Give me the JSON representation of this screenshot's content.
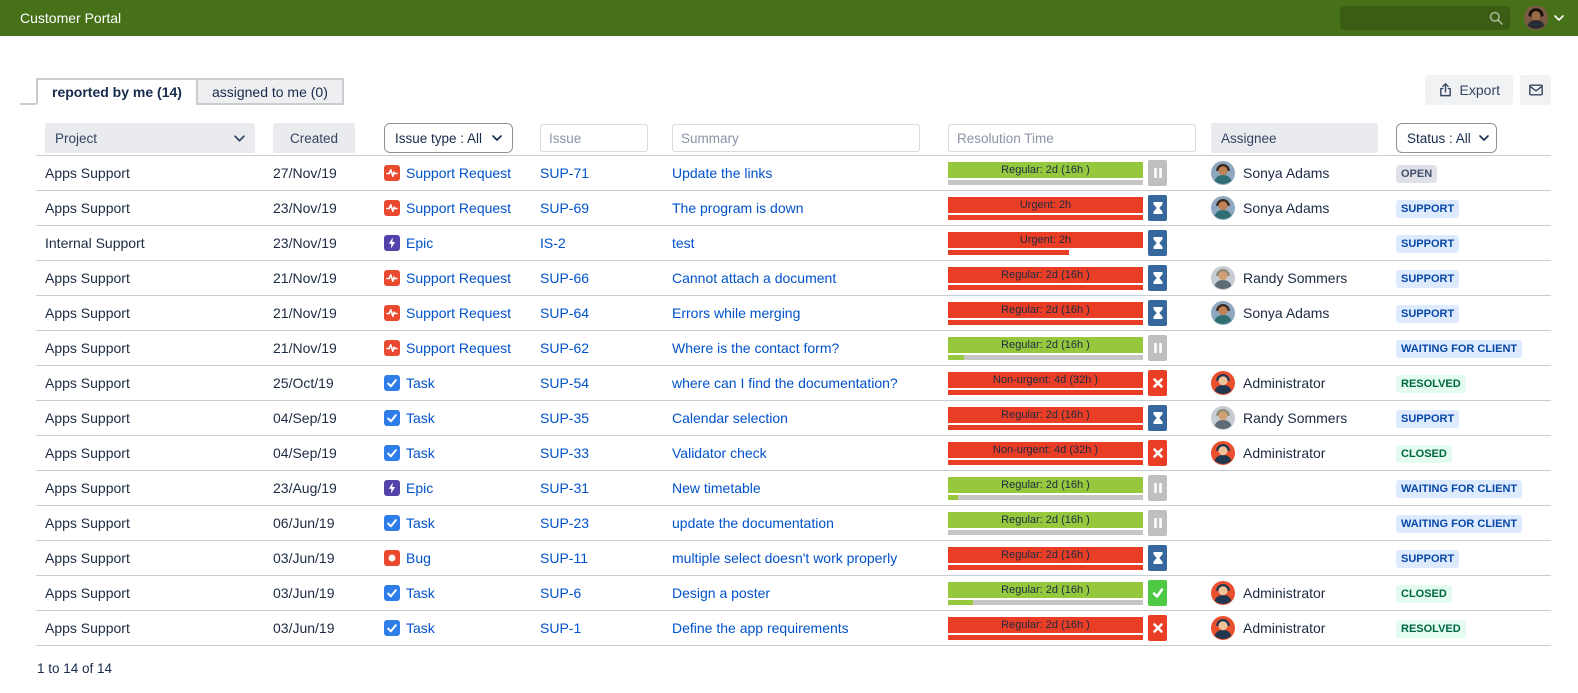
{
  "header": {
    "title": "Customer Portal",
    "search_value": "",
    "icons": [
      "search-icon",
      "user-avatar",
      "chevron-down-icon"
    ]
  },
  "tabs": [
    {
      "label": "reported by me (14)",
      "active": true
    },
    {
      "label": "assigned to me (0)",
      "active": false
    }
  ],
  "toolbar": {
    "export_label": "Export",
    "icons": [
      "export-icon",
      "envelope-icon"
    ]
  },
  "filters": {
    "project": "Project",
    "created": "Created",
    "issue_type": "Issue type : All",
    "issue_placeholder": "Issue",
    "summary_placeholder": "Summary",
    "resolution_placeholder": "Resolution Time",
    "assignee": "Assignee",
    "status": "Status : All"
  },
  "table": {
    "rows": [
      {
        "project": "Apps Support",
        "created": "27/Nov/19",
        "issue_type": "Support Request",
        "issue_type_icon": "support-request",
        "issue_key": "SUP-71",
        "summary": "Update the links",
        "sla": {
          "label": "Regular: 2d (16h )",
          "tone": "green",
          "icon": "pause",
          "progress_pct": 0,
          "track": "gray"
        },
        "assignee": "Sonya Adams",
        "avatar": "sonya",
        "status": {
          "label": "OPEN",
          "style": "gray"
        }
      },
      {
        "project": "Apps Support",
        "created": "23/Nov/19",
        "issue_type": "Support Request",
        "issue_type_icon": "support-request",
        "issue_key": "SUP-69",
        "summary": "The program is down",
        "sla": {
          "label": "Urgent: 2h",
          "tone": "red",
          "icon": "hourglass",
          "progress_pct": 100,
          "track": "none"
        },
        "assignee": "Sonya Adams",
        "avatar": "sonya",
        "status": {
          "label": "SUPPORT",
          "style": "blue"
        }
      },
      {
        "project": "Internal Support",
        "created": "23/Nov/19",
        "issue_type": "Epic",
        "issue_type_icon": "epic",
        "issue_key": "IS-2",
        "summary": "test",
        "sla": {
          "label": "Urgent: 2h",
          "tone": "red",
          "icon": "hourglass",
          "progress_pct": 62,
          "track": "none"
        },
        "assignee": "",
        "avatar": "",
        "status": {
          "label": "SUPPORT",
          "style": "blue"
        }
      },
      {
        "project": "Apps Support",
        "created": "21/Nov/19",
        "issue_type": "Support Request",
        "issue_type_icon": "support-request",
        "issue_key": "SUP-66",
        "summary": "Cannot attach a document",
        "sla": {
          "label": "Regular: 2d (16h )",
          "tone": "red",
          "icon": "hourglass",
          "progress_pct": 100,
          "track": "none"
        },
        "assignee": "Randy Sommers",
        "avatar": "randy",
        "status": {
          "label": "SUPPORT",
          "style": "blue"
        }
      },
      {
        "project": "Apps Support",
        "created": "21/Nov/19",
        "issue_type": "Support Request",
        "issue_type_icon": "support-request",
        "issue_key": "SUP-64",
        "summary": "Errors while merging",
        "sla": {
          "label": "Regular: 2d (16h )",
          "tone": "red",
          "icon": "hourglass",
          "progress_pct": 100,
          "track": "none"
        },
        "assignee": "Sonya Adams",
        "avatar": "sonya",
        "status": {
          "label": "SUPPORT",
          "style": "blue"
        }
      },
      {
        "project": "Apps Support",
        "created": "21/Nov/19",
        "issue_type": "Support Request",
        "issue_type_icon": "support-request",
        "issue_key": "SUP-62",
        "summary": "Where is the contact form?",
        "sla": {
          "label": "Regular: 2d (16h )",
          "tone": "green",
          "icon": "pause",
          "progress_pct": 8,
          "track": "gray"
        },
        "assignee": "",
        "avatar": "",
        "status": {
          "label": "WAITING FOR CLIENT",
          "style": "blue"
        }
      },
      {
        "project": "Apps Support",
        "created": "25/Oct/19",
        "issue_type": "Task",
        "issue_type_icon": "task",
        "issue_key": "SUP-54",
        "summary": "where can I find the documentation?",
        "sla": {
          "label": "Non-urgent: 4d (32h )",
          "tone": "red",
          "icon": "x",
          "progress_pct": 100,
          "track": "none"
        },
        "assignee": "Administrator",
        "avatar": "admin",
        "status": {
          "label": "RESOLVED",
          "style": "green"
        }
      },
      {
        "project": "Apps Support",
        "created": "04/Sep/19",
        "issue_type": "Task",
        "issue_type_icon": "task",
        "issue_key": "SUP-35",
        "summary": "Calendar selection",
        "sla": {
          "label": "Regular: 2d (16h )",
          "tone": "red",
          "icon": "hourglass",
          "progress_pct": 100,
          "track": "none"
        },
        "assignee": "Randy Sommers",
        "avatar": "randy",
        "status": {
          "label": "SUPPORT",
          "style": "blue"
        }
      },
      {
        "project": "Apps Support",
        "created": "04/Sep/19",
        "issue_type": "Task",
        "issue_type_icon": "task",
        "issue_key": "SUP-33",
        "summary": "Validator check",
        "sla": {
          "label": "Non-urgent: 4d (32h )",
          "tone": "red",
          "icon": "x",
          "progress_pct": 100,
          "track": "none"
        },
        "assignee": "Administrator",
        "avatar": "admin",
        "status": {
          "label": "CLOSED",
          "style": "green"
        }
      },
      {
        "project": "Apps Support",
        "created": "23/Aug/19",
        "issue_type": "Epic",
        "issue_type_icon": "epic",
        "issue_key": "SUP-31",
        "summary": "New timetable",
        "sla": {
          "label": "Regular: 2d (16h )",
          "tone": "green",
          "icon": "pause",
          "progress_pct": 5,
          "track": "gray"
        },
        "assignee": "",
        "avatar": "",
        "status": {
          "label": "WAITING FOR CLIENT",
          "style": "blue"
        }
      },
      {
        "project": "Apps Support",
        "created": "06/Jun/19",
        "issue_type": "Task",
        "issue_type_icon": "task",
        "issue_key": "SUP-23",
        "summary": "update the documentation",
        "sla": {
          "label": "Regular: 2d (16h )",
          "tone": "green",
          "icon": "pause",
          "progress_pct": 0,
          "track": "gray"
        },
        "assignee": "",
        "avatar": "",
        "status": {
          "label": "WAITING FOR CLIENT",
          "style": "blue"
        }
      },
      {
        "project": "Apps Support",
        "created": "03/Jun/19",
        "issue_type": "Bug",
        "issue_type_icon": "bug",
        "issue_key": "SUP-11",
        "summary": "multiple select doesn't work properly",
        "sla": {
          "label": "Regular: 2d (16h )",
          "tone": "red",
          "icon": "hourglass",
          "progress_pct": 100,
          "track": "none"
        },
        "assignee": "",
        "avatar": "",
        "status": {
          "label": "SUPPORT",
          "style": "blue"
        }
      },
      {
        "project": "Apps Support",
        "created": "03/Jun/19",
        "issue_type": "Task",
        "issue_type_icon": "task",
        "issue_key": "SUP-6",
        "summary": "Design a poster",
        "sla": {
          "label": "Regular: 2d (16h )",
          "tone": "green",
          "icon": "check",
          "progress_pct": 13,
          "track": "gray"
        },
        "assignee": "Administrator",
        "avatar": "admin",
        "status": {
          "label": "CLOSED",
          "style": "green"
        }
      },
      {
        "project": "Apps Support",
        "created": "03/Jun/19",
        "issue_type": "Task",
        "issue_type_icon": "task",
        "issue_key": "SUP-1",
        "summary": "Define the app requirements",
        "sla": {
          "label": "Regular: 2d (16h )",
          "tone": "red",
          "icon": "x",
          "progress_pct": 100,
          "track": "none"
        },
        "assignee": "Administrator",
        "avatar": "admin",
        "status": {
          "label": "RESOLVED",
          "style": "green"
        }
      }
    ]
  },
  "footer": {
    "range": "1 to 14 of 14"
  },
  "colors": {
    "header_bar": "#477119",
    "header_search": "#3A5C13",
    "link": "#0052CC",
    "sla_green": "#96C83E",
    "sla_red": "#E93E25",
    "sla_track": "#C6C6C6",
    "icon_pause": "#BFBFBF",
    "icon_wait": "#36689D",
    "icon_fail": "#E93E25",
    "icon_success": "#4DC944",
    "badge_gray_bg": "#DFE1E6",
    "badge_gray_text": "#42526E",
    "badge_blue_bg": "#DEEBFF",
    "badge_blue_text": "#0747A6",
    "badge_green_bg": "#E3FCEF",
    "badge_green_text": "#006644",
    "type_support_request": "#E8492F",
    "type_epic": "#5243AA",
    "type_task": "#2E7DE8",
    "type_bug": "#E8492F"
  }
}
